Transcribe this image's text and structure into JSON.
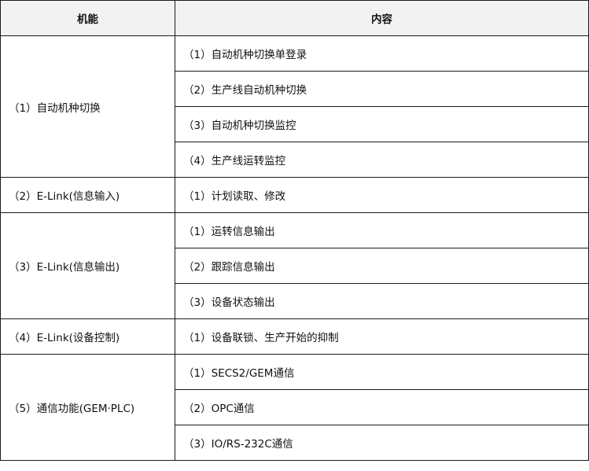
{
  "header": {
    "function": "机能",
    "content": "内容"
  },
  "rows": [
    {
      "function": "（1）自动机种切换",
      "items": [
        "（1）自动机种切换单登录",
        "（2）生产线自动机种切换",
        "（3）自动机种切换监控",
        "（4）生产线运转监控"
      ]
    },
    {
      "function": "（2）E-Link(信息输入)",
      "items": [
        "（1）计划读取、修改"
      ]
    },
    {
      "function": "（3）E-Link(信息输出)",
      "items": [
        "（1）运转信息输出",
        "（2）跟踪信息输出",
        "（3）设备状态输出"
      ]
    },
    {
      "function": "（4）E-Link(设备控制)",
      "items": [
        "（1）设备联锁、生产开始的抑制"
      ]
    },
    {
      "function": "（5）通信功能(GEM·PLC)",
      "items": [
        "（1）SECS2/GEM通信",
        "（2）OPC通信",
        "（3）IO/RS-232C通信"
      ]
    }
  ]
}
